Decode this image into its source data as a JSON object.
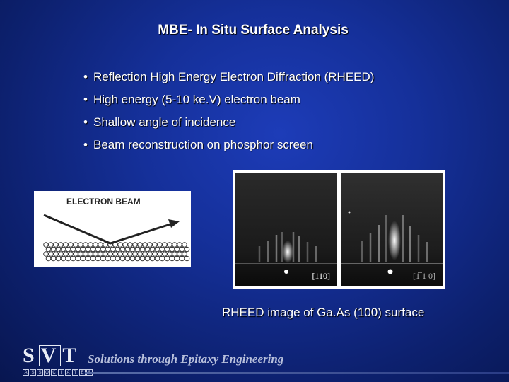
{
  "title": "MBE- In Situ Surface Analysis",
  "bullets": [
    "Reflection High Energy Electron Diffraction (RHEED)",
    "High energy (5-10 ke.V) electron beam",
    "Shallow angle of incidence",
    "Beam reconstruction on phosphor screen"
  ],
  "bullet_marker": "•",
  "figure": {
    "beam_label": "ELECTRON BEAM"
  },
  "rheed": {
    "left_label": "[110]",
    "right_label": "[1̅ 1 0]",
    "caption": "RHEED image of Ga.As (100) surface"
  },
  "footer": {
    "logo_letters": [
      "S",
      "V",
      "T"
    ],
    "logo_sub": [
      "A",
      "S",
      "S",
      "O",
      "C",
      "I",
      "A",
      "T",
      "E",
      "S"
    ],
    "tagline": "Solutions through Epitaxy Engineering"
  },
  "colors": {
    "background": "#15309a",
    "text": "#ffffff",
    "tagline": "#b8c0dc"
  }
}
